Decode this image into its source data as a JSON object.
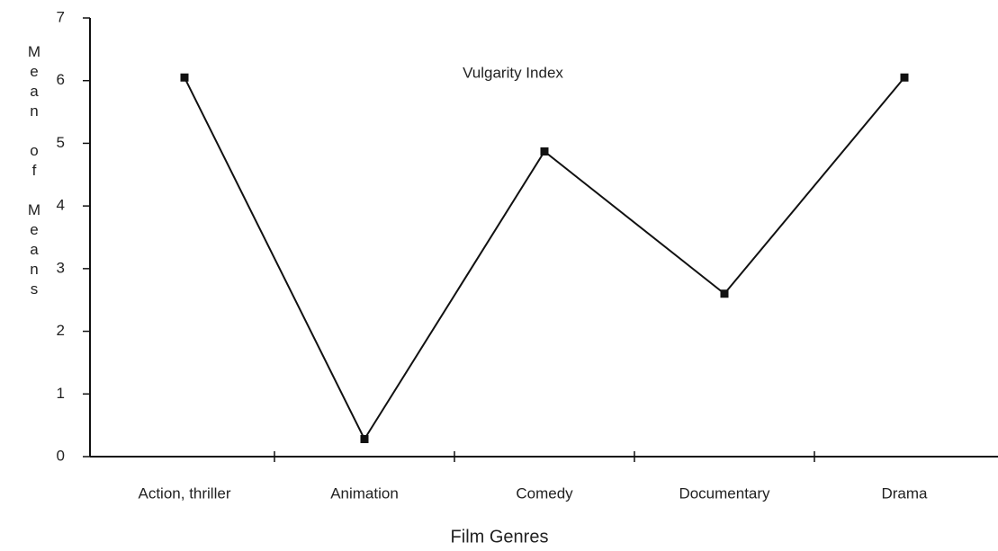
{
  "chart_data": {
    "type": "line",
    "title": "Vulgarity Index",
    "x_label": "Film Genres",
    "y_label": "Mean of Means",
    "categories": [
      "Action, thriller",
      "Animation",
      "Comedy",
      "Documentary",
      "Drama"
    ],
    "series": [
      {
        "name": "Vulgarity Index",
        "color": "#111111",
        "values": [
          6.05,
          0.28,
          4.87,
          2.6,
          6.05
        ]
      }
    ],
    "ylim": [
      0,
      7
    ],
    "yticks": [
      0,
      1,
      2,
      3,
      4,
      5,
      6,
      7
    ],
    "grid": false
  }
}
